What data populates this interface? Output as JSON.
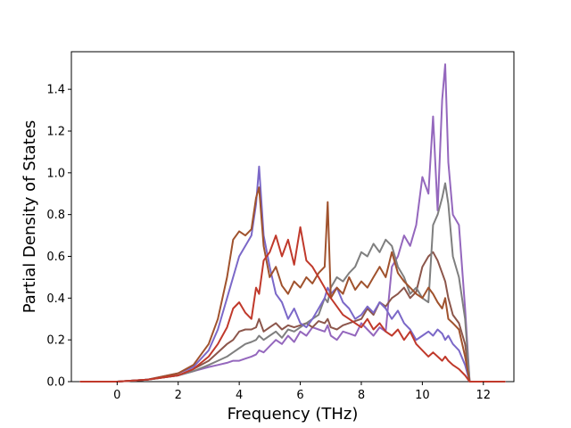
{
  "chart_data": {
    "type": "line",
    "xlabel": "Frequency (THz)",
    "ylabel": "Partial Density of States",
    "xlim": [
      -1.5,
      13.0
    ],
    "ylim": [
      0.0,
      1.58
    ],
    "xticks": [
      0,
      2,
      4,
      6,
      8,
      10,
      12
    ],
    "yticks": [
      0.0,
      0.2,
      0.4,
      0.6,
      0.8,
      1.0,
      1.2,
      1.4
    ],
    "grid": false,
    "x": [
      -1.2,
      0.0,
      1.0,
      2.0,
      2.5,
      3.0,
      3.3,
      3.6,
      3.8,
      4.0,
      4.2,
      4.4,
      4.55,
      4.65,
      4.8,
      5.0,
      5.2,
      5.4,
      5.6,
      5.8,
      6.0,
      6.2,
      6.4,
      6.6,
      6.8,
      6.9,
      7.0,
      7.2,
      7.4,
      7.6,
      7.8,
      8.0,
      8.2,
      8.4,
      8.6,
      8.8,
      9.0,
      9.2,
      9.4,
      9.6,
      9.8,
      10.0,
      10.2,
      10.35,
      10.5,
      10.65,
      10.75,
      10.85,
      11.0,
      11.2,
      11.4,
      11.55,
      11.7,
      12.0,
      12.7
    ],
    "series": [
      {
        "color": "#9467bd",
        "values": [
          0.0,
          0.0,
          0.01,
          0.03,
          0.05,
          0.07,
          0.08,
          0.09,
          0.1,
          0.1,
          0.11,
          0.12,
          0.13,
          0.15,
          0.14,
          0.17,
          0.2,
          0.18,
          0.22,
          0.19,
          0.24,
          0.22,
          0.26,
          0.25,
          0.24,
          0.27,
          0.22,
          0.2,
          0.24,
          0.23,
          0.22,
          0.28,
          0.25,
          0.22,
          0.26,
          0.24,
          0.55,
          0.6,
          0.7,
          0.65,
          0.75,
          0.98,
          0.9,
          1.27,
          0.82,
          1.35,
          1.52,
          1.05,
          0.8,
          0.75,
          0.35,
          0.0,
          0.0,
          0.0,
          0.0
        ]
      },
      {
        "color": "#8c564b",
        "values": [
          0.0,
          0.0,
          0.01,
          0.03,
          0.06,
          0.1,
          0.14,
          0.18,
          0.2,
          0.24,
          0.25,
          0.25,
          0.26,
          0.3,
          0.24,
          0.26,
          0.28,
          0.25,
          0.27,
          0.26,
          0.27,
          0.28,
          0.26,
          0.29,
          0.28,
          0.3,
          0.26,
          0.25,
          0.27,
          0.28,
          0.29,
          0.3,
          0.35,
          0.32,
          0.38,
          0.36,
          0.4,
          0.42,
          0.45,
          0.4,
          0.43,
          0.55,
          0.6,
          0.62,
          0.58,
          0.52,
          0.48,
          0.4,
          0.32,
          0.28,
          0.18,
          0.0,
          0.0,
          0.0,
          0.0
        ]
      },
      {
        "color": "#7f7f7f",
        "values": [
          0.0,
          0.0,
          0.01,
          0.03,
          0.05,
          0.08,
          0.1,
          0.12,
          0.14,
          0.16,
          0.18,
          0.19,
          0.2,
          0.22,
          0.2,
          0.22,
          0.24,
          0.21,
          0.25,
          0.24,
          0.26,
          0.28,
          0.3,
          0.32,
          0.4,
          0.38,
          0.45,
          0.5,
          0.48,
          0.52,
          0.55,
          0.62,
          0.6,
          0.66,
          0.62,
          0.68,
          0.65,
          0.55,
          0.5,
          0.42,
          0.45,
          0.4,
          0.38,
          0.75,
          0.8,
          0.88,
          0.95,
          0.85,
          0.6,
          0.5,
          0.3,
          0.0,
          0.0,
          0.0,
          0.0
        ]
      },
      {
        "color": "#7b68c8",
        "values": [
          0.0,
          0.0,
          0.01,
          0.04,
          0.07,
          0.15,
          0.25,
          0.4,
          0.5,
          0.6,
          0.65,
          0.7,
          0.85,
          1.03,
          0.7,
          0.55,
          0.42,
          0.38,
          0.3,
          0.35,
          0.28,
          0.26,
          0.3,
          0.35,
          0.4,
          0.45,
          0.42,
          0.45,
          0.38,
          0.35,
          0.3,
          0.32,
          0.36,
          0.33,
          0.38,
          0.35,
          0.3,
          0.34,
          0.28,
          0.25,
          0.2,
          0.22,
          0.24,
          0.22,
          0.25,
          0.23,
          0.2,
          0.22,
          0.18,
          0.15,
          0.08,
          0.0,
          0.0,
          0.0,
          0.0
        ]
      },
      {
        "color": "#a0522d",
        "values": [
          0.0,
          0.0,
          0.01,
          0.04,
          0.08,
          0.18,
          0.3,
          0.5,
          0.68,
          0.72,
          0.7,
          0.73,
          0.88,
          0.93,
          0.65,
          0.5,
          0.55,
          0.46,
          0.42,
          0.48,
          0.45,
          0.5,
          0.47,
          0.52,
          0.55,
          0.86,
          0.4,
          0.45,
          0.42,
          0.5,
          0.44,
          0.48,
          0.45,
          0.5,
          0.55,
          0.5,
          0.62,
          0.52,
          0.48,
          0.45,
          0.42,
          0.4,
          0.45,
          0.42,
          0.38,
          0.35,
          0.4,
          0.3,
          0.28,
          0.25,
          0.12,
          0.0,
          0.0,
          0.0,
          0.0
        ]
      },
      {
        "color": "#c0392b",
        "values": [
          0.0,
          0.0,
          0.01,
          0.03,
          0.06,
          0.12,
          0.18,
          0.26,
          0.35,
          0.38,
          0.33,
          0.3,
          0.45,
          0.42,
          0.58,
          0.62,
          0.7,
          0.6,
          0.68,
          0.56,
          0.74,
          0.58,
          0.55,
          0.5,
          0.45,
          0.42,
          0.4,
          0.36,
          0.32,
          0.3,
          0.28,
          0.26,
          0.3,
          0.25,
          0.28,
          0.24,
          0.22,
          0.25,
          0.2,
          0.24,
          0.18,
          0.15,
          0.12,
          0.14,
          0.12,
          0.1,
          0.12,
          0.1,
          0.08,
          0.06,
          0.03,
          0.0,
          0.0,
          0.0,
          0.0
        ]
      }
    ]
  }
}
